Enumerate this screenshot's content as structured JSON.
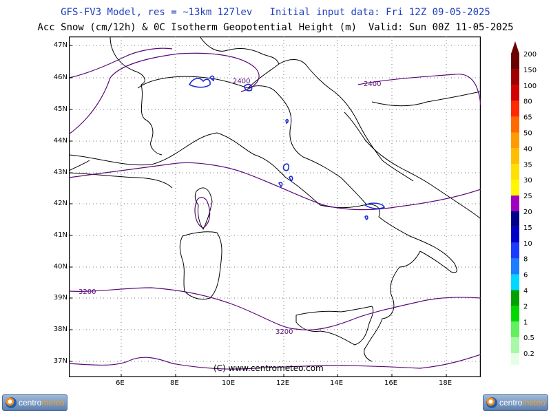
{
  "header": {
    "line1": "GFS-FV3 Model, res = ~13km 127lev   Initial input data: Fri 12Z 09-05-2025",
    "line2": "Acc Snow (cm/12h) & 0C Isotherm Geopotential Height (m)  Valid: Sun 00Z 11-05-2025"
  },
  "map": {
    "lat_labels": [
      "47N",
      "46N",
      "45N",
      "44N",
      "43N",
      "42N",
      "41N",
      "40N",
      "39N",
      "38N",
      "37N"
    ],
    "lon_labels": [
      "6E",
      "8E",
      "10E",
      "12E",
      "14E",
      "16E",
      "18E"
    ],
    "isotherm_labels": [
      "2400",
      "2400",
      "3200",
      "3200"
    ],
    "copyright": "(C)  www.centrometeo.com",
    "colors": {
      "coast": "#000000",
      "isotherm": "#5a0a78",
      "snow": "#1a2bd6"
    }
  },
  "legend": {
    "items": [
      {
        "label": "200",
        "color": "#6b0000"
      },
      {
        "label": "150",
        "color": "#a00000"
      },
      {
        "label": "100",
        "color": "#d20000"
      },
      {
        "label": "80",
        "color": "#ff2a00"
      },
      {
        "label": "65",
        "color": "#ff6a00"
      },
      {
        "label": "50",
        "color": "#ff9a00"
      },
      {
        "label": "40",
        "color": "#ffbf00"
      },
      {
        "label": "35",
        "color": "#ffe000"
      },
      {
        "label": "30",
        "color": "#fff600"
      },
      {
        "label": "25",
        "color": "#a000c0"
      },
      {
        "label": "20",
        "color": "#00008a"
      },
      {
        "label": "15",
        "color": "#0000c8"
      },
      {
        "label": "10",
        "color": "#1a3cff"
      },
      {
        "label": "8",
        "color": "#1e7cff"
      },
      {
        "label": "6",
        "color": "#00d8ff"
      },
      {
        "label": "4",
        "color": "#00a000"
      },
      {
        "label": "2",
        "color": "#00d800"
      },
      {
        "label": "1",
        "color": "#60f060"
      },
      {
        "label": "0.5",
        "color": "#a8f8a8"
      },
      {
        "label": "0.2",
        "color": "#e4ffe4"
      }
    ]
  },
  "logo": {
    "part1": "centro",
    "part2": "meteo"
  }
}
